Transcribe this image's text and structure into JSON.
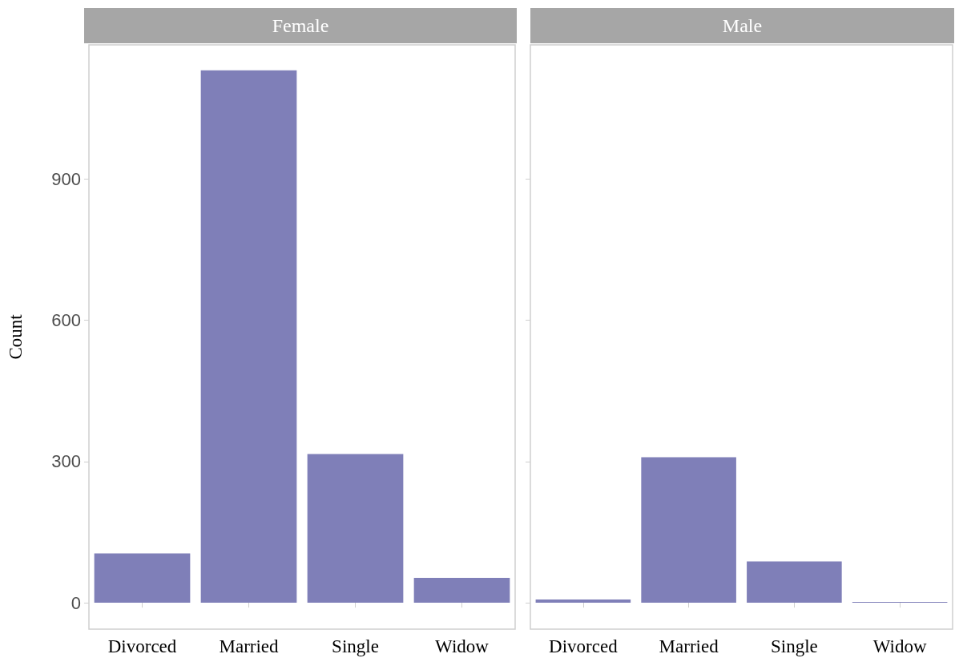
{
  "chart_data": [
    {
      "type": "bar",
      "title": "Female",
      "ylabel": "Count",
      "categories": [
        "Divorced",
        "Married",
        "Single",
        "Widow"
      ],
      "values": [
        105,
        1131,
        316,
        53
      ],
      "color": "#7f7fb8",
      "ylim": [
        -56,
        1185
      ],
      "yticks": [
        0,
        300,
        600,
        900
      ],
      "grid": false
    },
    {
      "type": "bar",
      "title": "Male",
      "categories": [
        "Divorced",
        "Married",
        "Single",
        "Widow"
      ],
      "values": [
        7,
        309,
        88,
        2
      ],
      "color": "#7f7fb8",
      "ylim": [
        -56,
        1185
      ],
      "yticks": [
        0,
        300,
        600,
        900
      ],
      "grid": false,
      "tick_labels": "x"
    }
  ]
}
